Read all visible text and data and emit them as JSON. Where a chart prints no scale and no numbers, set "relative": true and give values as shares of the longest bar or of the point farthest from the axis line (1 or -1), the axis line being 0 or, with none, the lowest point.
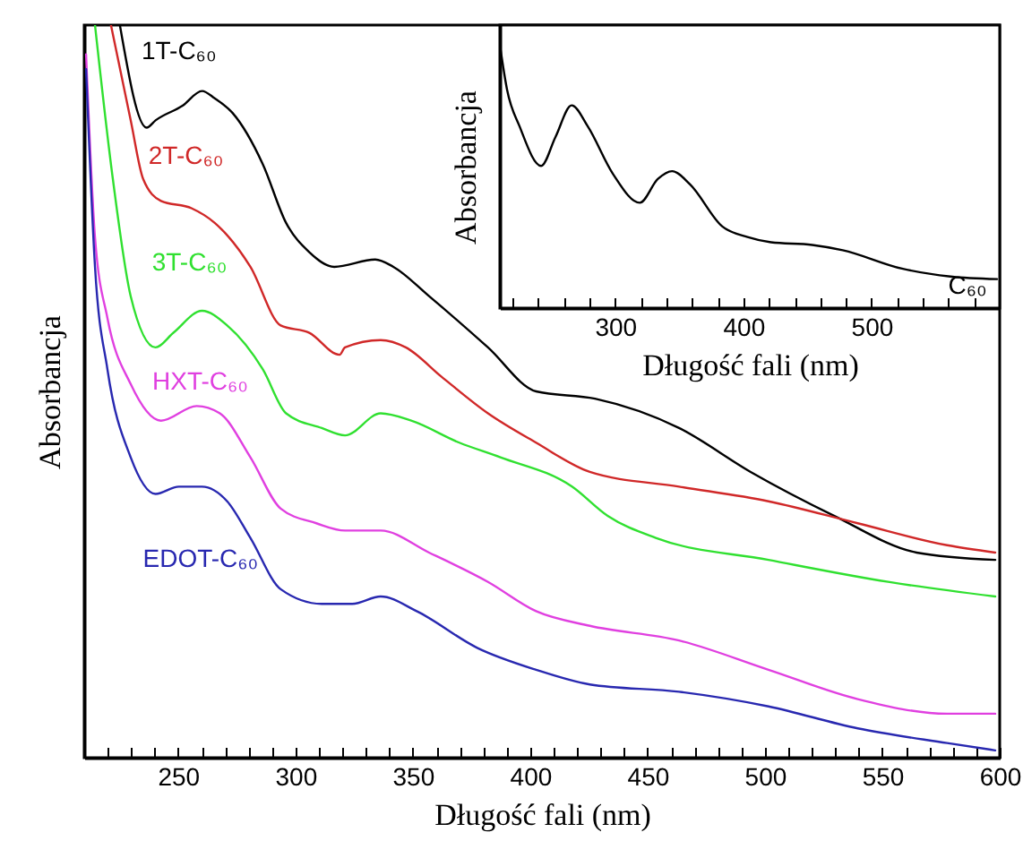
{
  "chart_data": [
    {
      "type": "line",
      "xlabel": "Długość fali (nm)",
      "ylabel": "Absorbancja",
      "relative": true,
      "xlim": [
        210,
        600
      ],
      "xticks": [
        {
          "value": 220,
          "label": null
        },
        {
          "value": 230,
          "label": null
        },
        {
          "value": 240,
          "label": null
        },
        250,
        {
          "value": 260,
          "label": null
        },
        {
          "value": 270,
          "label": null
        },
        {
          "value": 280,
          "label": null
        },
        {
          "value": 290,
          "label": null
        },
        300,
        {
          "value": 310,
          "label": null
        },
        {
          "value": 320,
          "label": null
        },
        {
          "value": 330,
          "label": null
        },
        {
          "value": 340,
          "label": null
        },
        350,
        {
          "value": 360,
          "label": null
        },
        {
          "value": 370,
          "label": null
        },
        {
          "value": 380,
          "label": null
        },
        {
          "value": 390,
          "label": null
        },
        400,
        {
          "value": 410,
          "label": null
        },
        {
          "value": 420,
          "label": null
        },
        {
          "value": 430,
          "label": null
        },
        {
          "value": 440,
          "label": null
        },
        450,
        {
          "value": 460,
          "label": null
        },
        {
          "value": 470,
          "label": null
        },
        {
          "value": 480,
          "label": null
        },
        {
          "value": 490,
          "label": null
        },
        500,
        {
          "value": 510,
          "label": null
        },
        {
          "value": 520,
          "label": null
        },
        {
          "value": 530,
          "label": null
        },
        {
          "value": 540,
          "label": null
        },
        550,
        {
          "value": 560,
          "label": null
        },
        {
          "value": 570,
          "label": null
        },
        {
          "value": 580,
          "label": null
        },
        {
          "value": 590,
          "label": null
        },
        600
      ],
      "series": [
        {
          "name": "1T-C₆₀",
          "color": "#000000",
          "x": [
            225.2,
            236.6,
            240.4,
            251.9,
            260.2,
            265.6,
            273.2,
            286.1,
            296,
            305.9,
            316.5,
            334,
            341.7,
            356.9,
            382,
            402.5,
            427.6,
            463.4,
            493.9,
            529.6,
            564.6,
            598.1
          ],
          "values": [
            1.0,
            0.86,
            0.87,
            0.89,
            0.91,
            0.9,
            0.88,
            0.81,
            0.73,
            0.69,
            0.67,
            0.68,
            0.67,
            0.63,
            0.56,
            0.5,
            0.49,
            0.45,
            0.39,
            0.33,
            0.28,
            0.27
          ]
        },
        {
          "name": "2T-C₆₀",
          "color": "#d02828",
          "x": [
            221.4,
            229.8,
            235.1,
            242.7,
            255.7,
            265.6,
            280.8,
            293.7,
            305.9,
            318.8,
            321.1,
            336.3,
            347,
            362.2,
            382,
            402.5,
            425.4,
            463.4,
            501.5,
            539.5,
            577.6,
            598.1
          ],
          "values": [
            1.0,
            0.87,
            0.79,
            0.76,
            0.75,
            0.73,
            0.67,
            0.59,
            0.58,
            0.55,
            0.56,
            0.57,
            0.56,
            0.52,
            0.47,
            0.43,
            0.39,
            0.37,
            0.35,
            0.32,
            0.29,
            0.28
          ]
        },
        {
          "name": "3T-C₆₀",
          "color": "#30e030",
          "x": [
            214.6,
            222.2,
            229.8,
            240.4,
            248,
            260.2,
            270.9,
            286.1,
            296,
            311.2,
            321.1,
            336.3,
            349.3,
            369.8,
            387.3,
            417.8,
            433,
            453.5,
            501.5,
            552.5,
            598.1
          ],
          "values": [
            1.0,
            0.79,
            0.63,
            0.56,
            0.58,
            0.61,
            0.59,
            0.53,
            0.47,
            0.45,
            0.44,
            0.47,
            0.46,
            0.43,
            0.41,
            0.37,
            0.33,
            0.3,
            0.27,
            0.24,
            0.22
          ]
        },
        {
          "name": "HXT-C₆₀",
          "color": "#e040e0",
          "x": [
            210.8,
            214.6,
            219.9,
            229.8,
            242.7,
            257.9,
            267.8,
            280.8,
            293.7,
            308.9,
            321.1,
            336.3,
            356.9,
            382,
            402.5,
            425.4,
            463.4,
            501.5,
            539.5,
            577.6,
            598.1
          ],
          "values": [
            0.96,
            0.71,
            0.6,
            0.51,
            0.46,
            0.48,
            0.47,
            0.41,
            0.34,
            0.32,
            0.31,
            0.31,
            0.28,
            0.24,
            0.2,
            0.18,
            0.16,
            0.12,
            0.08,
            0.06,
            0.06
          ]
        },
        {
          "name": "EDOT-C₆₀",
          "color": "#2828b0",
          "x": [
            210.8,
            214.6,
            219.9,
            229.8,
            240.4,
            250.3,
            260.2,
            270.9,
            280.8,
            293.7,
            311.2,
            324.2,
            336.3,
            351.6,
            377.4,
            402.5,
            425.4,
            463.4,
            501.5,
            539.5,
            577.6,
            598.1
          ],
          "values": [
            0.94,
            0.67,
            0.53,
            0.41,
            0.36,
            0.37,
            0.37,
            0.35,
            0.3,
            0.23,
            0.21,
            0.21,
            0.22,
            0.2,
            0.15,
            0.12,
            0.1,
            0.09,
            0.07,
            0.04,
            0.02,
            0.01
          ]
        }
      ]
    },
    {
      "type": "line",
      "xlabel": "Długość fali (nm)",
      "ylabel": "Absorbancja",
      "relative": true,
      "xlim": [
        210,
        600
      ],
      "xticks": [
        {
          "value": 220,
          "label": null
        },
        {
          "value": 240,
          "label": null
        },
        {
          "value": 260,
          "label": null
        },
        {
          "value": 280,
          "label": null
        },
        300,
        {
          "value": 320,
          "label": null
        },
        {
          "value": 340,
          "label": null
        },
        {
          "value": 360,
          "label": null
        },
        {
          "value": 380,
          "label": null
        },
        400,
        {
          "value": 420,
          "label": null
        },
        {
          "value": 440,
          "label": null
        },
        {
          "value": 460,
          "label": null
        },
        {
          "value": 480,
          "label": null
        },
        500,
        {
          "value": 520,
          "label": null
        },
        {
          "value": 540,
          "label": null
        },
        {
          "value": 560,
          "label": null
        },
        {
          "value": 580,
          "label": null
        }
      ],
      "series": [
        {
          "name": "C₆₀",
          "color": "#000000",
          "x": [
            210,
            215.6,
            225.4,
            242.2,
            253.4,
            266,
            278.6,
            298.2,
            319.2,
            333.2,
            344.4,
            358.4,
            383.6,
            403.2,
            421.5,
            453.7,
            477.5,
            523.7,
            561.5,
            597.9
          ],
          "values": [
            1.0,
            0.83,
            0.69,
            0.54,
            0.65,
            0.77,
            0.69,
            0.51,
            0.4,
            0.49,
            0.52,
            0.47,
            0.31,
            0.27,
            0.25,
            0.24,
            0.22,
            0.15,
            0.12,
            0.11
          ]
        }
      ]
    }
  ]
}
